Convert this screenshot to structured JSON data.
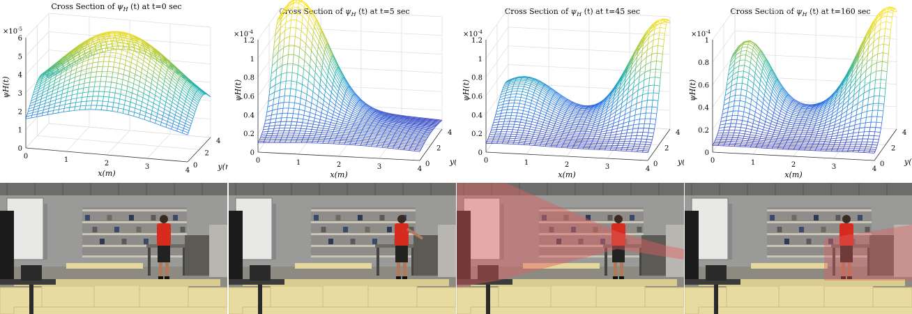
{
  "figure": {
    "panels": [
      {
        "title_prefix": "Cross Section of",
        "title_symbol": "ψ",
        "title_subscript": "H",
        "title_arg": "(t)",
        "title_suffix": "at t=0 sec",
        "zexp_base": "×10",
        "zexp_power": "-5",
        "ztick_labels": [
          "0",
          "1",
          "2",
          "3",
          "4",
          "5",
          "6"
        ],
        "xtick_labels": [
          "0",
          "1",
          "2",
          "3",
          "4"
        ],
        "ytick_labels": [
          "0",
          "2",
          "4"
        ],
        "xlabel": "x(m)",
        "ylabel": "y(m)",
        "zlabel": "ψH(t)"
      },
      {
        "title_prefix": "Cross Section of",
        "title_symbol": "ψ",
        "title_subscript": "H",
        "title_arg": "(t)",
        "title_suffix": "at t=5 sec",
        "zexp_base": "×10",
        "zexp_power": "-4",
        "ztick_labels": [
          "0",
          "0.2",
          "0.4",
          "0.6",
          "0.8",
          "1",
          "1.2"
        ],
        "xtick_labels": [
          "0",
          "1",
          "2",
          "3",
          "4"
        ],
        "ytick_labels": [
          "0",
          "2",
          "4"
        ],
        "xlabel": "x(m)",
        "ylabel": "y(m)",
        "zlabel": "ψH(t)"
      },
      {
        "title_prefix": "Cross Section of",
        "title_symbol": "ψ",
        "title_subscript": "H",
        "title_arg": "(t)",
        "title_suffix": "at t=45 sec",
        "zexp_base": "×10",
        "zexp_power": "-4",
        "ztick_labels": [
          "0",
          "0.2",
          "0.4",
          "0.6",
          "0.8",
          "1",
          "1.2"
        ],
        "xtick_labels": [
          "0",
          "1",
          "2",
          "3",
          "4"
        ],
        "ytick_labels": [
          "0",
          "2",
          "4"
        ],
        "xlabel": "x(m)",
        "ylabel": "y(m)",
        "zlabel": "ψH(t)"
      },
      {
        "title_prefix": "Cross Section of",
        "title_symbol": "ψ",
        "title_subscript": "H",
        "title_arg": "(t)",
        "title_suffix": "at t=160 sec",
        "zexp_base": "×10",
        "zexp_power": "-4",
        "ztick_labels": [
          "0",
          "0.2",
          "0.4",
          "0.6",
          "0.8",
          "1"
        ],
        "xtick_labels": [
          "0",
          "1",
          "2",
          "3",
          "4"
        ],
        "ytick_labels": [
          "0",
          "2",
          "4"
        ],
        "xlabel": "x(m)",
        "ylabel": "y(m)",
        "zlabel": "ψH(t)"
      }
    ]
  },
  "chart_data": [
    {
      "type": "surface",
      "title": "Cross Section of ψH(t) at t=0 sec",
      "xlabel": "x(m)",
      "ylabel": "y(m)",
      "zlabel": "ψH(t)",
      "xlim": [
        0,
        4
      ],
      "ylim": [
        0,
        4
      ],
      "zlim": [
        0,
        6e-05
      ],
      "z_scale": "×10^-5",
      "grid": true,
      "shape": "single broad peak",
      "peak": {
        "x": 2.0,
        "y": 2.5,
        "z": 5.7e-05
      },
      "colormap": "parula"
    },
    {
      "type": "surface",
      "title": "Cross Section of ψH(t) at t=5 sec",
      "xlabel": "x(m)",
      "ylabel": "y(m)",
      "zlabel": "ψH(t)",
      "xlim": [
        0,
        4
      ],
      "ylim": [
        0,
        4
      ],
      "zlim": [
        0,
        0.00012
      ],
      "z_scale": "×10^-4",
      "grid": true,
      "shape": "peak near x=0.5, y=3.5",
      "peak": {
        "x": 0.5,
        "y": 3.5,
        "z": 0.000125
      },
      "colormap": "parula"
    },
    {
      "type": "surface",
      "title": "Cross Section of ψH(t) at t=45 sec",
      "xlabel": "x(m)",
      "ylabel": "y(m)",
      "zlabel": "ψH(t)",
      "xlim": [
        0,
        4
      ],
      "ylim": [
        0,
        4
      ],
      "zlim": [
        0,
        0.00012
      ],
      "z_scale": "×10^-4",
      "grid": true,
      "shape": "peak near x=4, y=3.5 with plateau near x=0.5",
      "peak": {
        "x": 3.8,
        "y": 3.5,
        "z": 0.00012
      },
      "colormap": "parula"
    },
    {
      "type": "surface",
      "title": "Cross Section of ψH(t) at t=160 sec",
      "xlabel": "x(m)",
      "ylabel": "y(m)",
      "zlabel": "ψH(t)",
      "xlim": [
        0,
        4
      ],
      "ylim": [
        0,
        4
      ],
      "zlim": [
        0,
        0.0001
      ],
      "z_scale": "×10^-4",
      "grid": true,
      "shape": "two peaks: near x=0.4 and near x=4",
      "peak": {
        "x": 3.8,
        "y": 3.5,
        "z": 0.000105
      },
      "secondary_peak": {
        "x": 0.4,
        "y": 3.5,
        "z": 8e-05
      },
      "colormap": "parula"
    }
  ],
  "colors": {
    "accent_shade": "#e06060",
    "mesh_low": "#3e26a8",
    "mesh_mid": "#1fb5ae",
    "mesh_high": "#f9e126"
  }
}
